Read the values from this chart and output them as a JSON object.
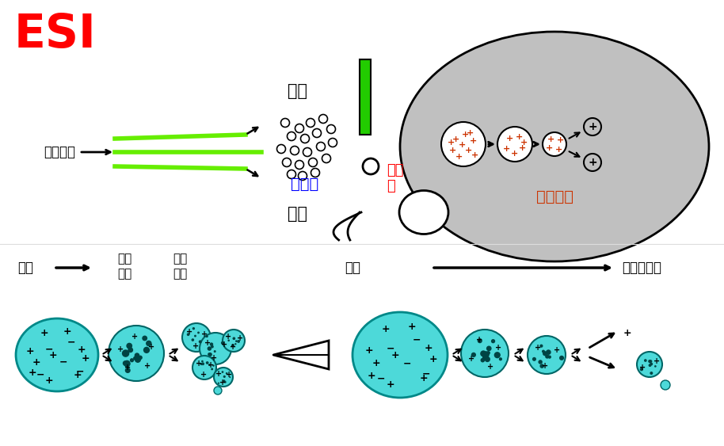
{
  "title": "ESI",
  "bg_color": "#ffffff",
  "title_color": "#ff0000",
  "spray_label_top": "雾化",
  "spray_label_bottom": "雾化",
  "atm_label": "大气压",
  "vacuum_label": "真空\n空",
  "sample_label": "样品溶液",
  "ion_evap_label": "离子蒸发",
  "evap1": "蒸发",
  "rayleigh": "瑞利\n极限",
  "coulomb": "库伦\n爆炸",
  "evap2": "蒸发",
  "analyze": "待分析离子",
  "cyan_color": "#4dd9d9",
  "gray_bg": "#c0c0c0",
  "green_line": "#66ee00"
}
